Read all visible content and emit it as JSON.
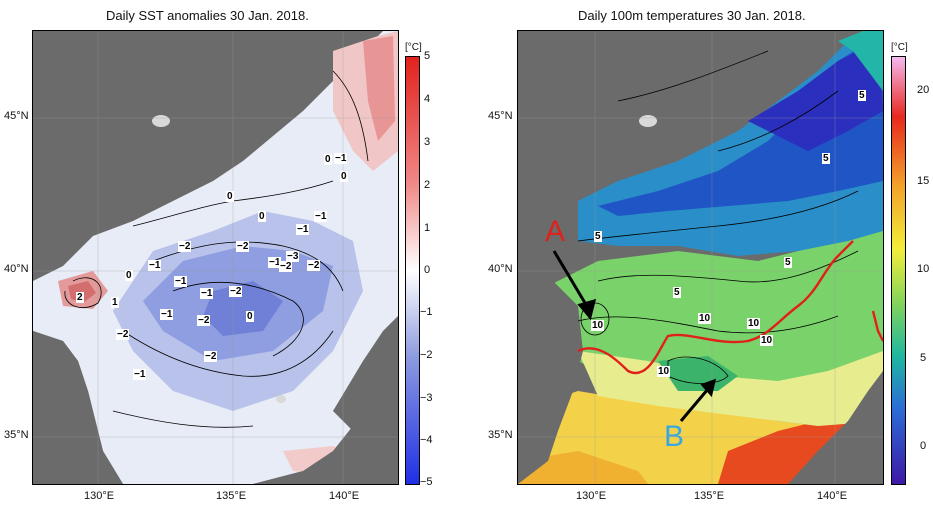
{
  "left_panel": {
    "title": "Daily SST anomalies 30 Jan. 2018.",
    "unit": "[°C]",
    "colorbar_ticks": [
      "5",
      "4",
      "3",
      "2",
      "1",
      "0",
      "−1",
      "−2",
      "−3",
      "−4",
      "−5"
    ],
    "contour_labels": [
      "0",
      "−1",
      "0",
      "0",
      "0",
      "−1",
      "−1",
      "2",
      "1",
      "0",
      "−1",
      "−2",
      "−2",
      "−1",
      "−2",
      "−3",
      "−2",
      "−1",
      "−1",
      "−2",
      "−2",
      "−2",
      "0",
      "−1",
      "−2",
      "−1",
      "0"
    ]
  },
  "right_panel": {
    "title": "Daily 100m temperatures 30 Jan. 2018.",
    "unit": "[°C]",
    "colorbar_ticks": [
      "20",
      "15",
      "10",
      "5",
      "0"
    ],
    "contour_labels": [
      "5",
      "5",
      "5",
      "5",
      "5",
      "10",
      "10",
      "10",
      "10",
      "10"
    ],
    "annotation_a": "A",
    "annotation_b": "B"
  },
  "axes": {
    "lat_labels": [
      "45°N",
      "40°N",
      "35°N"
    ],
    "lon_labels": [
      "130°E",
      "135°E",
      "140°E"
    ]
  },
  "colors": {
    "land": "#6b6b6b",
    "front_line": "#e0201a",
    "annotation_a": "#e0201a",
    "annotation_b": "#3aa7e0"
  }
}
